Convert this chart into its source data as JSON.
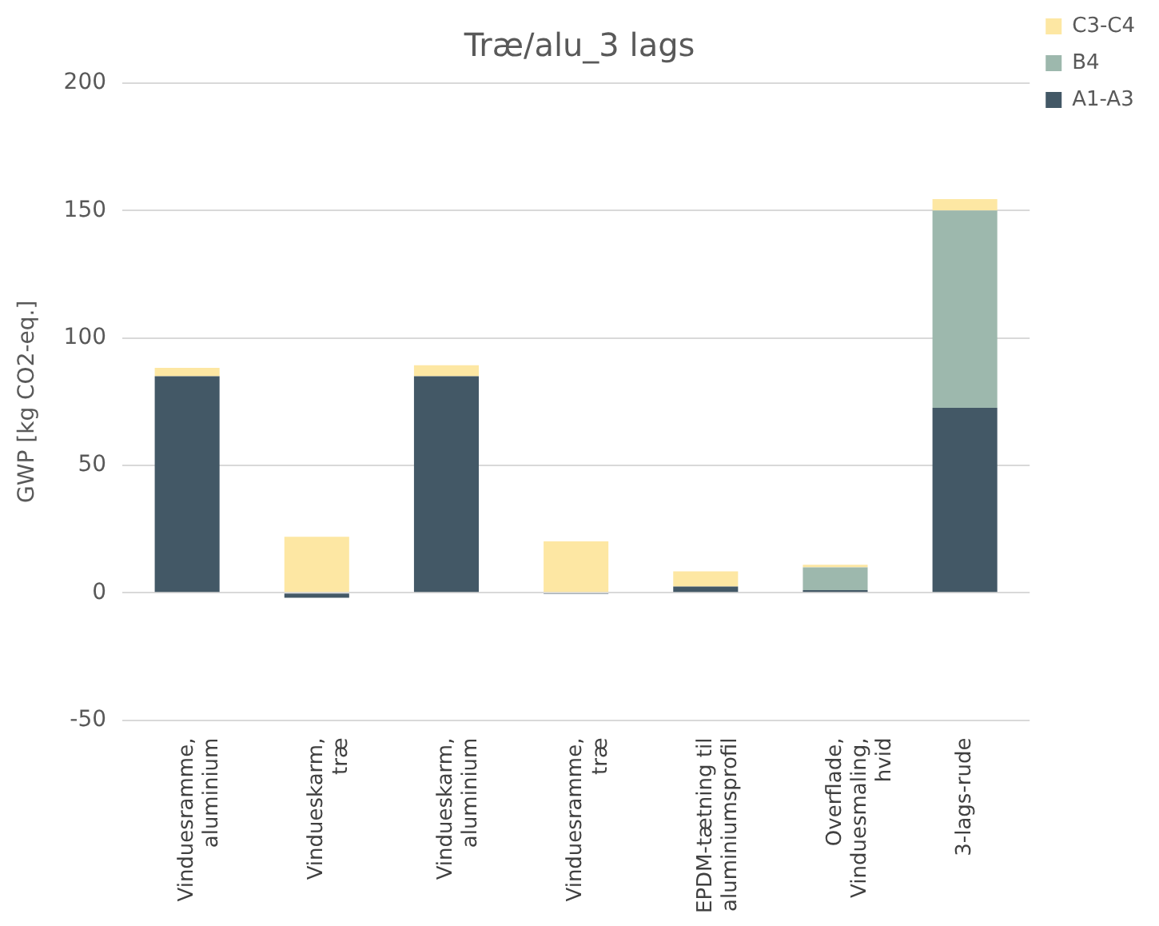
{
  "chart_data": {
    "type": "bar",
    "title": "Træ/alu_3 lags",
    "ylabel": "GWP [kg CO2-eq.]",
    "categories": [
      "Vinduesramme, aluminium",
      "Vindueskarm, træ",
      "Vindueskarm, aluminium",
      "Vinduesramme, træ",
      "EPDM-tætning til aluminiumsprofil",
      "Overflade, Vinduesmaling, hvid",
      "3-lags-rude"
    ],
    "stacked": true,
    "series": [
      {
        "name": "A1-A3",
        "color": "#435866",
        "values": [
          85,
          -2,
          85,
          -0.5,
          2.4,
          1,
          72.6
        ]
      },
      {
        "name": "B4",
        "color": "#9db8ad",
        "values": [
          null,
          null,
          null,
          null,
          null,
          9,
          77.4
        ]
      },
      {
        "name": "C3-C4",
        "color": "#fde7a3",
        "values": [
          3.3,
          22,
          4.3,
          20.2,
          6,
          1,
          4.5
        ]
      }
    ],
    "ylim": [
      -50,
      200
    ],
    "yticks": [
      -50,
      0,
      50,
      100,
      150,
      200
    ],
    "grid": "y",
    "legend": "top right"
  }
}
